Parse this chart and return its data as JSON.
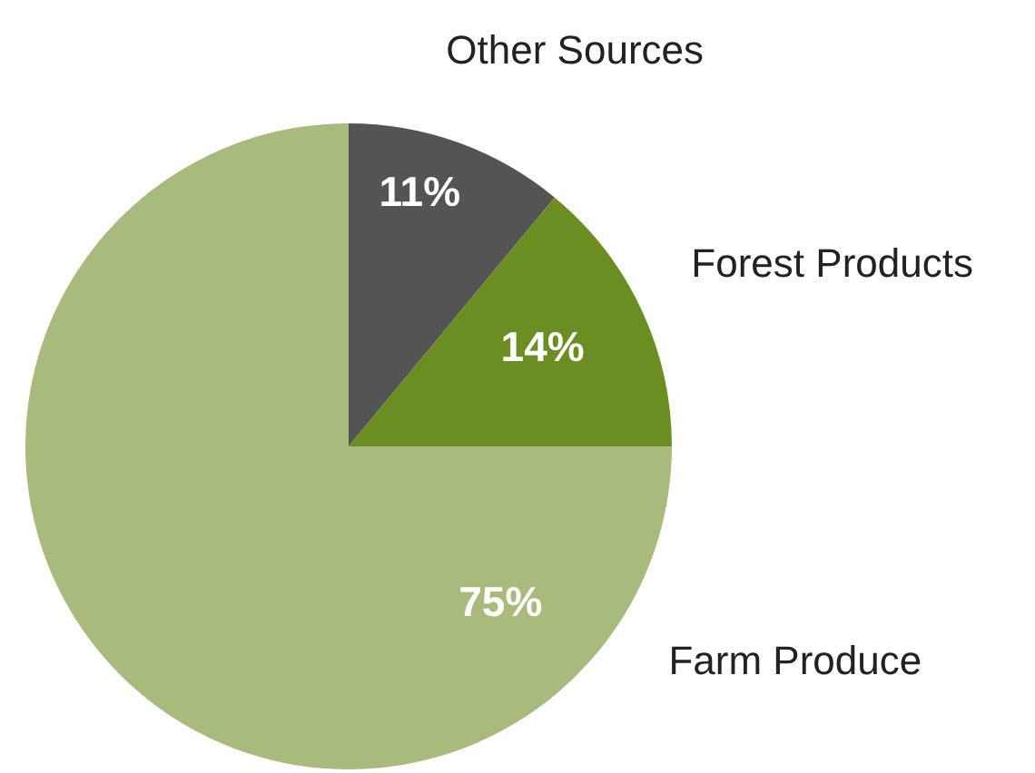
{
  "chart_data": {
    "type": "pie",
    "categories": [
      "Other Sources",
      "Forest Products",
      "Farm Produce"
    ],
    "values": [
      11,
      14,
      75
    ],
    "colors": [
      "#545454",
      "#6b8e23",
      "#a8bb7d"
    ],
    "value_labels": [
      "11%",
      "14%",
      "75%"
    ],
    "legend": false
  }
}
